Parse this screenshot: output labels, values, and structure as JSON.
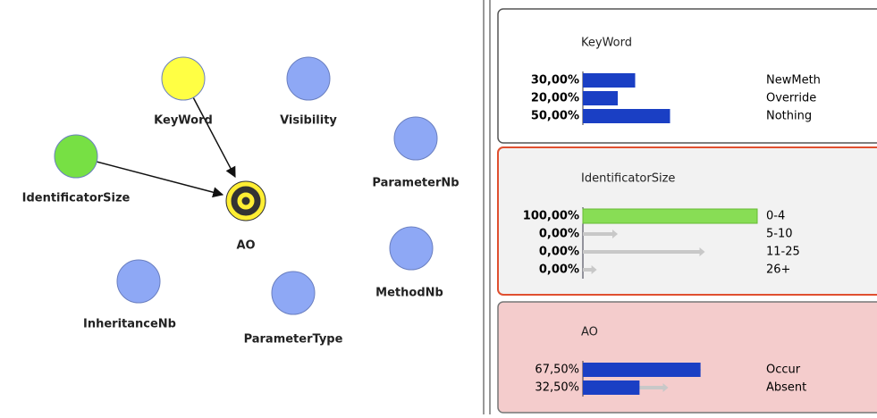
{
  "graph": {
    "nodes": [
      {
        "label": "KeyWord"
      },
      {
        "label": "Visibility"
      },
      {
        "label": "IdentificatorSize"
      },
      {
        "label": "AO"
      },
      {
        "label": "ParameterNb"
      },
      {
        "label": "MethodNb"
      },
      {
        "label": "InheritanceNb"
      },
      {
        "label": "ParameterType"
      }
    ]
  },
  "panels": [
    {
      "title": "KeyWord",
      "rows": [
        {
          "percent": "30,00%",
          "value": 30,
          "state": "NewMeth"
        },
        {
          "percent": "20,00%",
          "value": 20,
          "state": "Override"
        },
        {
          "percent": "50,00%",
          "value": 50,
          "state": "Nothing"
        }
      ]
    },
    {
      "title": "IdentificatorSize",
      "rows": [
        {
          "percent": "100,00%",
          "value": 100,
          "state": "0-4"
        },
        {
          "percent": "0,00%",
          "value": 0,
          "previous": 20,
          "state": "5-10"
        },
        {
          "percent": "0,00%",
          "value": 0,
          "previous": 70,
          "state": "11-25"
        },
        {
          "percent": "0,00%",
          "value": 0,
          "previous": 8,
          "state": "26+"
        }
      ]
    },
    {
      "title": "AO",
      "rows": [
        {
          "percent": "67,50%",
          "value": 67.5,
          "previous": 68,
          "state": "Occur"
        },
        {
          "percent": "32,50%",
          "value": 32.5,
          "previous": 49,
          "state": "Absent"
        }
      ]
    }
  ]
}
